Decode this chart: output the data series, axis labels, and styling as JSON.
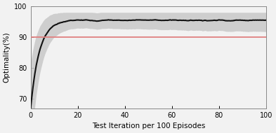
{
  "xlabel": "Test Iteration per 100 Episodes",
  "ylabel": "Optimality(%)",
  "xlim": [
    0,
    100
  ],
  "ylim": [
    67,
    100
  ],
  "yticks": [
    70,
    80,
    90,
    100
  ],
  "xticks": [
    0,
    20,
    40,
    60,
    80,
    100
  ],
  "reference_line_y": 90,
  "reference_line_color": "#e08080",
  "mean_color": "#111111",
  "fill_color": "#c8c8c8",
  "fill_alpha": 0.85,
  "line_width": 1.5,
  "background_color": "#f2f2f2"
}
